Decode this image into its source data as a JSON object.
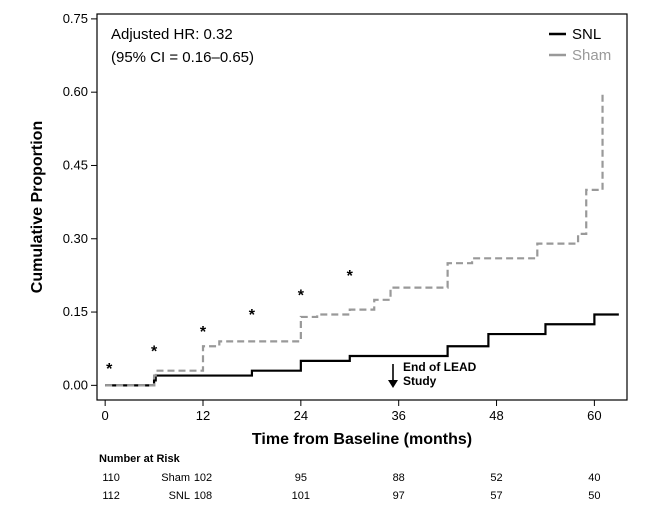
{
  "chart_data": {
    "type": "line",
    "title": "",
    "xlabel": "Time from Baseline (months)",
    "ylabel": "Cumulative Proportion",
    "xlim": [
      -1,
      64
    ],
    "ylim": [
      -0.03,
      0.76
    ],
    "x_ticks": [
      0,
      12,
      24,
      36,
      48,
      60
    ],
    "x_tick_labels": [
      "0",
      "12",
      "24",
      "36",
      "48",
      "60"
    ],
    "y_ticks": [
      0.0,
      0.15,
      0.3,
      0.45,
      0.6,
      0.75
    ],
    "y_tick_labels": [
      "0.00",
      "0.15",
      "0.30",
      "0.45",
      "0.60",
      "0.75"
    ],
    "grid": false,
    "legend_position": "top-right",
    "series": [
      {
        "name": "SNL",
        "color": "#000000",
        "dash": "solid",
        "steps": [
          [
            0,
            0.0
          ],
          [
            6,
            0.01
          ],
          [
            6.2,
            0.02
          ],
          [
            18,
            0.03
          ],
          [
            24,
            0.05
          ],
          [
            30,
            0.06
          ],
          [
            42,
            0.08
          ],
          [
            47,
            0.105
          ],
          [
            54,
            0.125
          ],
          [
            60,
            0.145
          ],
          [
            63,
            0.145
          ]
        ]
      },
      {
        "name": "Sham",
        "color": "#999999",
        "dash": "dashed",
        "steps": [
          [
            0,
            0.0
          ],
          [
            6,
            0.02
          ],
          [
            6.2,
            0.03
          ],
          [
            12,
            0.08
          ],
          [
            14,
            0.09
          ],
          [
            24,
            0.14
          ],
          [
            26,
            0.145
          ],
          [
            30,
            0.155
          ],
          [
            33,
            0.175
          ],
          [
            35,
            0.2
          ],
          [
            42,
            0.25
          ],
          [
            45,
            0.26
          ],
          [
            53,
            0.29
          ],
          [
            58,
            0.31
          ],
          [
            59,
            0.4
          ],
          [
            61,
            0.6
          ]
        ]
      }
    ],
    "significance_markers": [
      {
        "x": 0.5,
        "y": 0.04,
        "label": "*"
      },
      {
        "x": 6,
        "y": 0.075,
        "label": "*"
      },
      {
        "x": 12,
        "y": 0.115,
        "label": "*"
      },
      {
        "x": 18,
        "y": 0.15,
        "label": "*"
      },
      {
        "x": 24,
        "y": 0.19,
        "label": "*"
      },
      {
        "x": 30,
        "y": 0.23,
        "label": "*"
      }
    ],
    "annotations": {
      "hr_line1": "Adjusted HR: 0.32",
      "hr_line2": "(95% CI = 0.16–0.65)",
      "end_label_line1": "End of LEAD",
      "end_label_line2": "Study",
      "end_x": 36
    }
  },
  "risk_table": {
    "title": "Number at Risk",
    "rows": [
      {
        "label": "Sham",
        "values": [
          "110",
          "102",
          "95",
          "88",
          "52",
          "40"
        ]
      },
      {
        "label": "SNL",
        "values": [
          "112",
          "108",
          "101",
          "97",
          "57",
          "50"
        ]
      }
    ]
  }
}
